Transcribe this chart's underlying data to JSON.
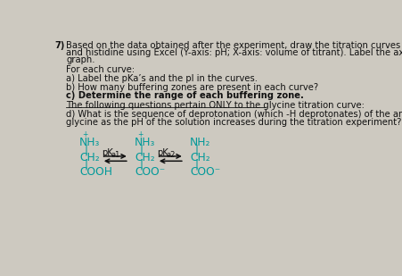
{
  "bg_color": "#cdc9c0",
  "text_color": "#111111",
  "chem_color": "#009999",
  "arrow_color": "#222222",
  "question_number": "7)",
  "line1": "Based on the data obtained after the experiment, draw the titration curves for glycine",
  "line2": "and histidine using Excel (Y-axis: pH; X-axis: volume of titrant). Label the axes in the",
  "line3": "graph.",
  "for_each": "For each curve:",
  "a_label": "a) Label the pKa’s and the pI in the curves.",
  "b_label": "b) How many buffering zones are present in each curve?",
  "c_label": "c) Determine the range of each buffering zone.",
  "underline_text": "The following questions pertain ONLY to the glycine titration curve:",
  "d_label1": "d) What is the sequence of deprotonation (which -H deprotonates) of the amino acid",
  "d_label2": "glycine as the pH of the solution increases during the titration experiment?",
  "fs_main": 7.2,
  "fs_chem": 8.8,
  "fs_small": 5.5
}
